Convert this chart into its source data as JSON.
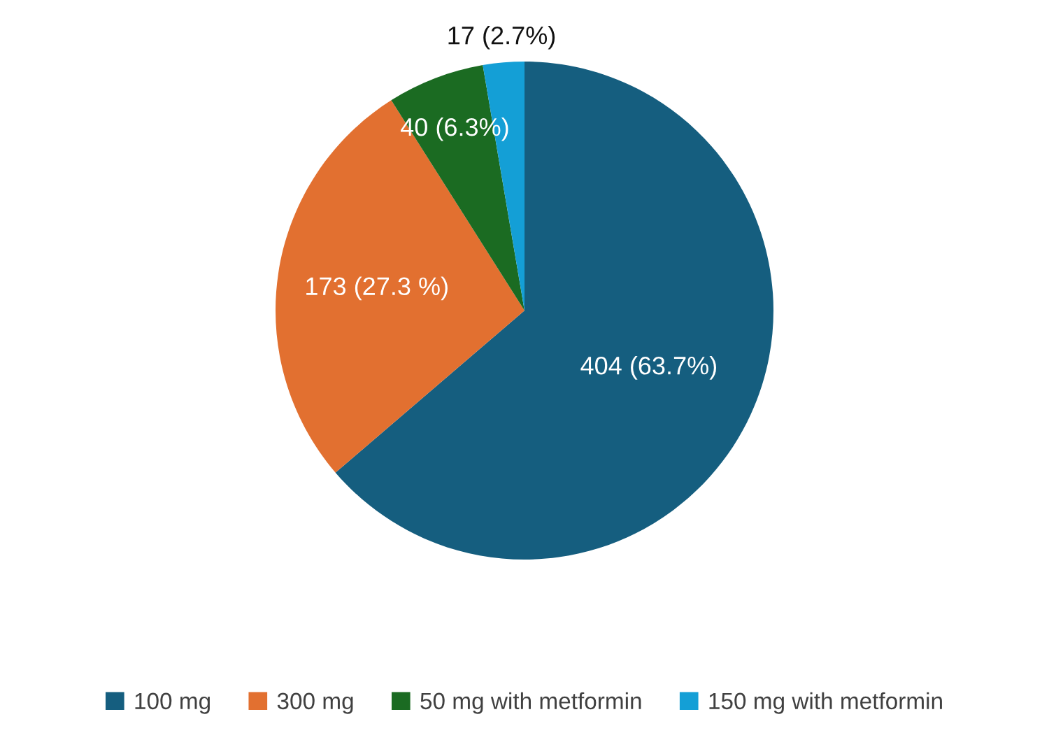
{
  "chart_data": {
    "type": "pie",
    "categories": [
      "100 mg",
      "300 mg",
      "50 mg with metformin",
      "150 mg with metformin"
    ],
    "values": [
      404,
      173,
      40,
      17
    ],
    "colors": [
      "#155e7f",
      "#e27030",
      "#1b6b22",
      "#149fd6"
    ],
    "value_labels": [
      "404 (63.7%)",
      "173 (27.3 %)",
      "40 (6.3%)",
      "17 (2.7%)"
    ],
    "legend": "bottom"
  }
}
